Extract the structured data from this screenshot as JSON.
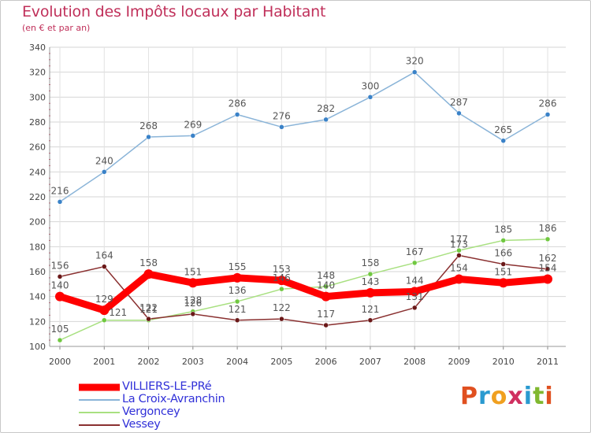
{
  "title": "Evolution des Impôts locaux par Habitant",
  "subtitle": "(en € et par an)",
  "logo": {
    "letters": [
      "P",
      "r",
      "o",
      "x",
      "i",
      "t",
      "i"
    ],
    "colors": [
      "#e05020",
      "#2a9ad0",
      "#f0a020",
      "#d03060",
      "#2a9ad0",
      "#80b830",
      "#e05020"
    ]
  },
  "chart_data": {
    "type": "line",
    "x": [
      "2000",
      "2001",
      "2002",
      "2003",
      "2004",
      "2005",
      "2006",
      "2007",
      "2008",
      "2009",
      "2010",
      "2011"
    ],
    "ylim": [
      100,
      340
    ],
    "yticks": [
      "100",
      "120",
      "140",
      "160",
      "180",
      "200",
      "220",
      "240",
      "260",
      "280",
      "300",
      "320",
      "340"
    ],
    "grid": true,
    "legend": "bottom-left",
    "series": [
      {
        "name": "VILLIERS-LE-PRé",
        "color": "#ff0000",
        "point_color": "#ff0000",
        "width": 9,
        "values": [
          140,
          129,
          158,
          151,
          155,
          153,
          140,
          143,
          144,
          154,
          151,
          154
        ],
        "labels": [
          "140",
          "129",
          "158",
          "151",
          "155",
          "153",
          "140",
          "143",
          "144",
          "154",
          "151",
          "154"
        ],
        "label_pos": [
          "above",
          "above",
          "above",
          "above",
          "above",
          "above",
          "above",
          "above",
          "above",
          "above",
          "above",
          "above"
        ]
      },
      {
        "name": "La Croix-Avranchin",
        "color": "#8ab4d8",
        "point_color": "#3a82c8",
        "width": 1.5,
        "values": [
          216,
          240,
          268,
          269,
          286,
          276,
          282,
          300,
          320,
          287,
          265,
          286
        ],
        "labels": [
          "216",
          "240",
          "268",
          "269",
          "286",
          "276",
          "282",
          "300",
          "320",
          "287",
          "265",
          "286"
        ],
        "label_pos": [
          "above",
          "above",
          "above",
          "above",
          "above",
          "above",
          "above",
          "above",
          "above",
          "above",
          "above",
          "above"
        ]
      },
      {
        "name": "Vergoncey",
        "color": "#a8e080",
        "point_color": "#70c840",
        "width": 1.5,
        "values": [
          105,
          121,
          121,
          128,
          136,
          146,
          148,
          158,
          167,
          177,
          185,
          186
        ],
        "labels": [
          "105",
          "121",
          "121",
          "128",
          "136",
          "146",
          "148",
          "158",
          "167",
          "177",
          "185",
          "186"
        ],
        "label_pos": [
          "above",
          "right",
          "above",
          "above",
          "above",
          "above",
          "above",
          "above",
          "above",
          "above",
          "above",
          "above"
        ]
      },
      {
        "name": "Vessey",
        "color": "#8a3030",
        "point_color": "#6a1818",
        "width": 1.5,
        "values": [
          156,
          164,
          122,
          126,
          121,
          122,
          117,
          121,
          131,
          173,
          166,
          162
        ],
        "labels": [
          "156",
          "164",
          "122",
          "126",
          "121",
          "122",
          "117",
          "121",
          "131",
          "173",
          "166",
          "162"
        ],
        "label_pos": [
          "above",
          "above",
          "above",
          "above",
          "above",
          "above",
          "above",
          "above",
          "above",
          "above",
          "above",
          "above"
        ]
      }
    ]
  }
}
